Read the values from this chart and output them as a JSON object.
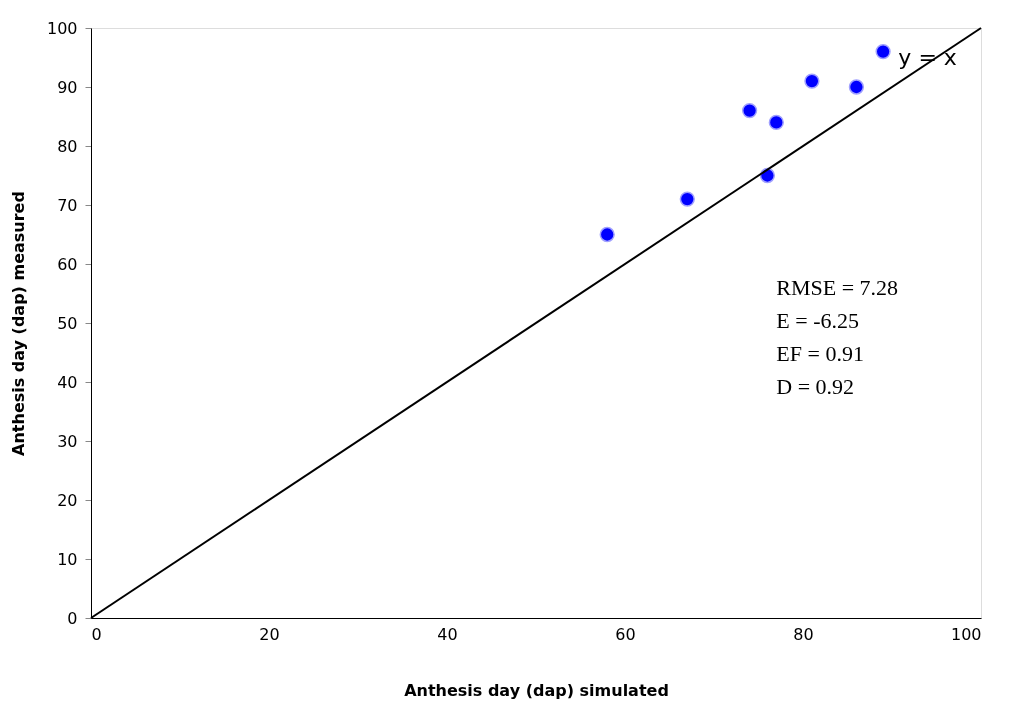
{
  "chart_data": {
    "type": "scatter",
    "xlabel": "Anthesis day (dap) simulated",
    "ylabel": "Anthesis day (dap) measured",
    "x": [
      58,
      67,
      74,
      76,
      77,
      81,
      86,
      89
    ],
    "series": [
      {
        "color": "#0000ff",
        "values": [
          65,
          71,
          86,
          75,
          84,
          91,
          90,
          96
        ]
      },
      {
        "type": "line",
        "marker": "none",
        "color": "#000000",
        "x": [
          0,
          100
        ],
        "values": [
          0,
          100
        ]
      }
    ],
    "xlim": [
      0,
      100
    ],
    "xticks": [
      0,
      20,
      40,
      60,
      80,
      100
    ],
    "ylim": [
      0,
      100
    ],
    "yticks": [
      0,
      10,
      20,
      30,
      40,
      50,
      60,
      70,
      80,
      90,
      100
    ],
    "grid": false,
    "marker": "circle",
    "line_style": "solid",
    "annotations": [
      {
        "text": "y = x",
        "x": 94,
        "y": 95
      },
      "RMSE = 7.28",
      "E = -6.25",
      "EF = 0.91",
      "D = 0.92"
    ]
  }
}
